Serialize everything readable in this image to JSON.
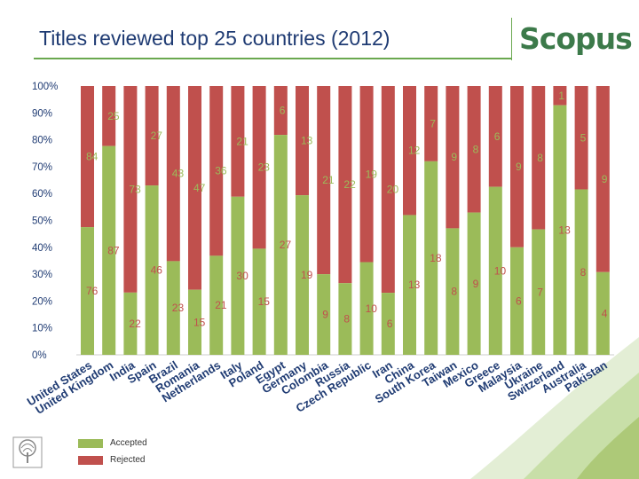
{
  "header": {
    "title": "Titles reviewed top 25 countries (2012)",
    "logo": "Scopus"
  },
  "colors": {
    "accepted": "#9bbb59",
    "rejected": "#c0504d",
    "title": "#1f3b73",
    "logo": "#3c7a4a"
  },
  "legend": {
    "accepted": "Accepted",
    "rejected": "Rejected"
  },
  "chart_data": {
    "type": "bar",
    "stacked": "percent",
    "title": "Titles reviewed top 25 countries (2012)",
    "categories": [
      "United States",
      "United Kingdom",
      "India",
      "Spain",
      "Brazil",
      "Romania",
      "Netherlands",
      "Italy",
      "Poland",
      "Egypt",
      "Germany",
      "Colombia",
      "Russia",
      "Czech Republic",
      "Iran",
      "China",
      "South Korea",
      "Taiwan",
      "Mexico",
      "Greece",
      "Malaysia",
      "Ukraine",
      "Switzerland",
      "Australia",
      "Pakistan"
    ],
    "series": [
      {
        "name": "Accepted",
        "values": [
          76,
          87,
          22,
          46,
          23,
          15,
          21,
          30,
          15,
          27,
          19,
          9,
          8,
          10,
          6,
          13,
          18,
          8,
          9,
          10,
          6,
          7,
          13,
          8,
          4
        ]
      },
      {
        "name": "Rejected",
        "values": [
          84,
          25,
          73,
          27,
          43,
          47,
          36,
          21,
          23,
          6,
          13,
          21,
          22,
          19,
          20,
          12,
          7,
          9,
          8,
          6,
          9,
          8,
          1,
          5,
          9
        ]
      }
    ],
    "yticks": [
      "0%",
      "10%",
      "20%",
      "30%",
      "40%",
      "50%",
      "60%",
      "70%",
      "80%",
      "90%",
      "100%"
    ],
    "ylim": [
      0,
      100
    ],
    "legend_position": "bottom-left",
    "grid": false
  }
}
